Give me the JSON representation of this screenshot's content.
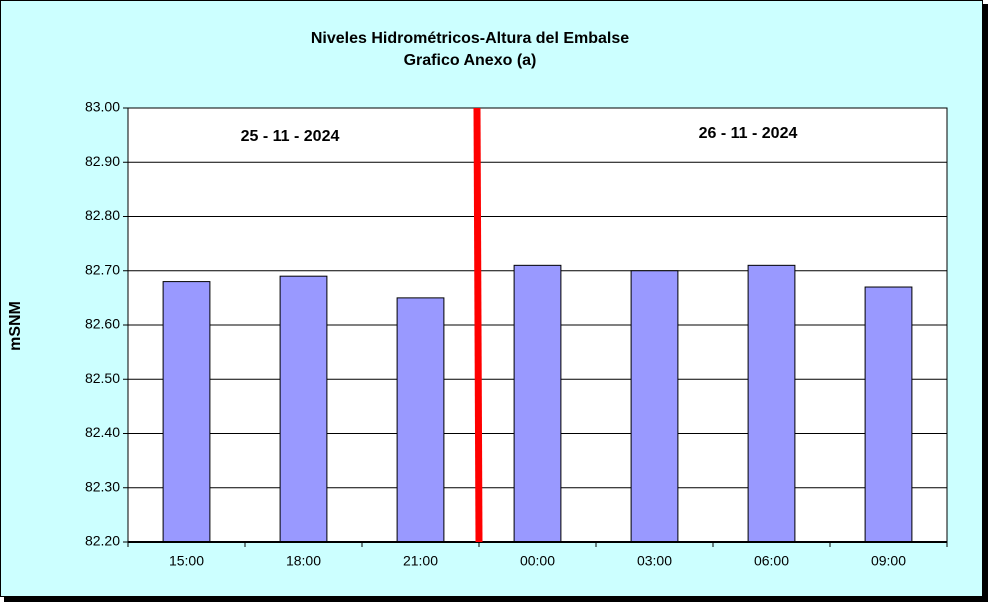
{
  "chart_data": {
    "type": "bar",
    "title": "Niveles Hidrométricos-Altura del Embalse",
    "subtitle": "Grafico Anexo (a)",
    "y_label": "mSNM",
    "annotations": [
      "25 - 11 - 2024",
      "26 - 11 - 2024"
    ],
    "categories": [
      "15:00",
      "18:00",
      "21:00",
      "00:00",
      "03:00",
      "06:00",
      "09:00"
    ],
    "values": [
      82.68,
      82.69,
      82.65,
      82.71,
      82.7,
      82.71,
      82.67
    ],
    "color": "#9999ff",
    "ylim": [
      82.2,
      83.0
    ],
    "yticks": [
      {
        "value": 82.2,
        "label": "82.20"
      },
      {
        "value": 82.3,
        "label": "82.30"
      },
      {
        "value": 82.4,
        "label": "82.40"
      },
      {
        "value": 82.5,
        "label": "82.50"
      },
      {
        "value": 82.6,
        "label": "82.60"
      },
      {
        "value": 82.7,
        "label": "82.70"
      },
      {
        "value": 82.8,
        "label": "82.80"
      },
      {
        "value": 82.9,
        "label": "82.90"
      },
      {
        "value": 83.0,
        "label": "83.00"
      }
    ],
    "grid": true
  }
}
